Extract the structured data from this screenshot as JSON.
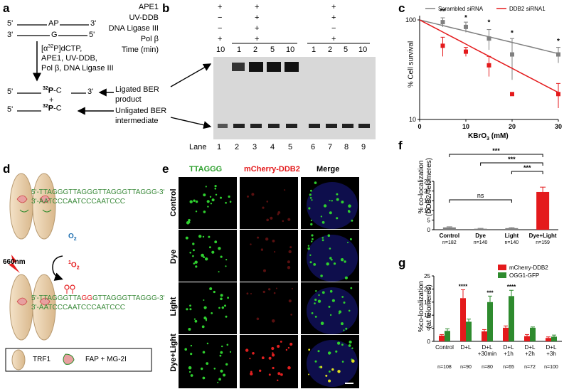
{
  "panels": {
    "a": "a",
    "b": "b",
    "c": "c",
    "d": "d",
    "e": "e",
    "f": "f",
    "g": "g"
  },
  "panel_a": {
    "top_strand": [
      "5'",
      "AP",
      "3'"
    ],
    "bot_strand": [
      "3'",
      "G",
      "5'"
    ],
    "reagents": [
      "[α",
      "32",
      "P]dCTP,",
      "APE1, UV-DDB,",
      "Pol β, DNA Ligase III"
    ],
    "prod1": [
      "5'",
      "32",
      "P",
      "-C",
      "3'"
    ],
    "plus": "+",
    "prod2": [
      "5'",
      "32",
      "P",
      "-C"
    ],
    "ligated_label": [
      "Ligated BER",
      "product"
    ],
    "unligated_label": [
      "Unligated BER",
      "intermediate"
    ]
  },
  "panel_b": {
    "row_labels": [
      "APE1",
      "UV-DDB",
      "DNA Ligase III",
      "Pol β",
      "Time (min)"
    ],
    "rows": [
      [
        "+",
        "",
        "+",
        "",
        "",
        "+",
        ""
      ],
      [
        "−",
        "",
        "+",
        "",
        "",
        "+",
        ""
      ],
      [
        "−",
        "",
        "+",
        "",
        "",
        "−",
        ""
      ],
      [
        "+",
        "",
        "+",
        "",
        "",
        "+",
        ""
      ]
    ],
    "times": [
      "10",
      "1",
      "2",
      "5",
      "10",
      "1",
      "2",
      "5",
      "10"
    ],
    "lane_label": "Lane",
    "lanes": [
      "1",
      "2",
      "3",
      "4",
      "5",
      "6",
      "7",
      "8",
      "9"
    ]
  },
  "panel_c": {
    "legend": [
      "Scrambled siRNA",
      "DDB2 siRNA1"
    ],
    "ylabel": "% Cell survival",
    "xlabel": "KBrO",
    "xlabel_sub": "3",
    "xlabel_unit": " (mM)",
    "stars": [
      "**",
      "*",
      "*",
      "*",
      "*",
      "*"
    ]
  },
  "panel_d": {
    "seq_top": "5'-TTAGGGTTAGGGTTAGGGTTAGGG-3'",
    "seq_bot": "3'-AATCCCAATCCCAATCCC",
    "light": "660nm",
    "o2": "O",
    "o2_sub": "2",
    "singlet_sup": "1",
    "singlet": "O",
    "singlet_sub": "2",
    "seq_top2_a": "5'-TTAGGGTTA",
    "seq_top2_b": "GG",
    "seq_top2_c": "GTTAGGGTTAGGG-3'",
    "legend_trf1": "TRF1",
    "legend_fap": "FAP + MG-2I"
  },
  "panel_e": {
    "col_headers": [
      "TTAGGG",
      "mCherry-DDB2",
      "Merge"
    ],
    "row_labels": [
      "Control",
      "Dye",
      "Light",
      "Dye+Light"
    ]
  },
  "panel_f": {
    "ylabel": [
      "% co-localization",
      "(DDB2/Telomeres)"
    ],
    "categories": [
      "Control",
      "Dye",
      "Light",
      "Dye+Light"
    ],
    "ns": [
      "n=182",
      "n=140",
      "n=140",
      "n=159"
    ],
    "sig": [
      "***",
      "***",
      "***",
      "ns"
    ]
  },
  "panel_g": {
    "ylabel": [
      "%co-localization",
      "(at telomeres)"
    ],
    "legend": [
      "mCherry-DDB2",
      "OGG1-GFP"
    ],
    "cat_line1": [
      "Control",
      "D+L",
      "D+L",
      "D+L",
      "D+L",
      "D+L"
    ],
    "cat_line2": [
      "",
      "",
      "+30min",
      "+1h",
      "+2h",
      "+3h"
    ],
    "ns": [
      "n=108",
      "n=90",
      "n=80",
      "n=65",
      "n=72",
      "n=100"
    ],
    "stars": [
      "****",
      "***",
      "****"
    ]
  },
  "chart_data": [
    {
      "type": "line",
      "title": "",
      "xlabel": "KBrO3 (mM)",
      "ylabel": "% Cell survival",
      "yscale": "log",
      "xlim": [
        0,
        30
      ],
      "ylim": [
        10,
        100
      ],
      "xticks": [
        0,
        10,
        20,
        30
      ],
      "yticks": [
        10,
        100
      ],
      "x": [
        0,
        5,
        10,
        15,
        20,
        30
      ],
      "series": [
        {
          "name": "Scrambled siRNA",
          "color": "#808080",
          "values": [
            100,
            95,
            85,
            65,
            45,
            45
          ],
          "err": [
            3,
            10,
            10,
            15,
            20,
            8
          ]
        },
        {
          "name": "DDB2 siRNA1",
          "color": "#e41a1c",
          "values": [
            100,
            55,
            48,
            35,
            18,
            18
          ],
          "err": [
            3,
            12,
            5,
            8,
            0,
            5
          ]
        }
      ]
    },
    {
      "type": "bar",
      "title": "",
      "ylabel": "% co-localization (DDB2/Telomeres)",
      "categories": [
        "Control",
        "Dye",
        "Light",
        "Dye+Light"
      ],
      "values": [
        1.2,
        0.5,
        0.8,
        19.5
      ],
      "err": [
        0.3,
        0.2,
        0.3,
        2.5
      ],
      "colors": [
        "#808080",
        "#808080",
        "#808080",
        "#e41a1c"
      ],
      "ylim": [
        0,
        25
      ],
      "yticks": [
        0,
        5,
        10,
        15,
        20,
        25
      ]
    },
    {
      "type": "bar",
      "title": "",
      "ylabel": "%co-localization (at telomeres)",
      "categories": [
        "Control",
        "D+L",
        "D+L +30min",
        "D+L +1h",
        "D+L +2h",
        "D+L +3h"
      ],
      "series": [
        {
          "name": "mCherry-DDB2",
          "color": "#e41a1c",
          "values": [
            2.2,
            16.5,
            3.8,
            5.2,
            2,
            1.3
          ],
          "err": [
            0.4,
            3.2,
            0.7,
            0.7,
            0.6,
            0.4
          ]
        },
        {
          "name": "OGG1-GFP",
          "color": "#2e8b2e",
          "values": [
            4,
            7.5,
            15,
            17.3,
            5.2,
            1.8
          ],
          "err": [
            0.8,
            1,
            2.3,
            2.2,
            0.3,
            0.6
          ]
        }
      ],
      "ylim": [
        0,
        25
      ],
      "yticks": [
        0,
        5,
        10,
        15,
        20,
        25
      ]
    }
  ]
}
